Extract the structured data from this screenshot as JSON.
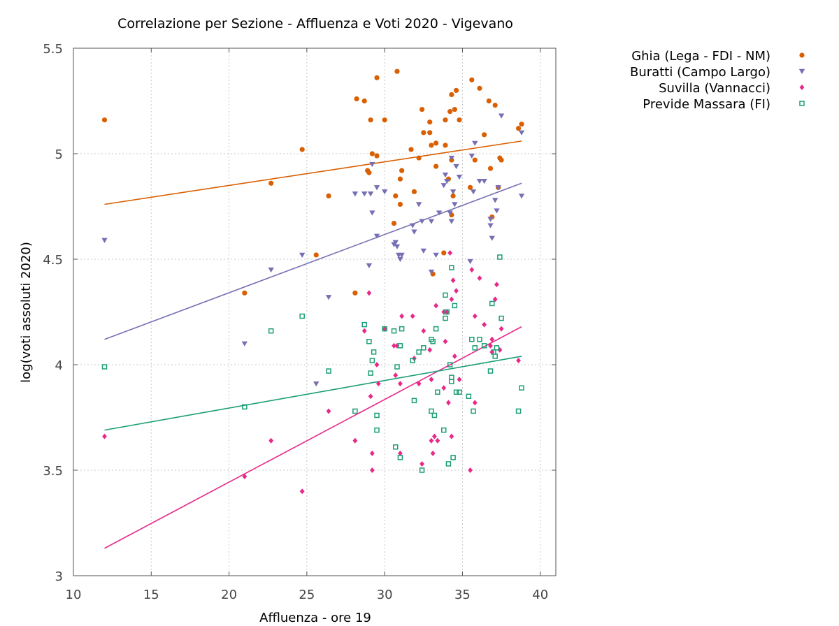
{
  "chart_data": {
    "type": "scatter",
    "title": "Correlazione per Sezione - Affluenza e Voti 2020 - Vigevano",
    "xlabel": "Affluenza - ore 19",
    "ylabel": "log(voti assoluti 2020)",
    "xlim": [
      10,
      41
    ],
    "ylim": [
      3,
      5.5
    ],
    "xticks": [
      10,
      15,
      20,
      25,
      30,
      35,
      40
    ],
    "yticks": [
      3,
      3.5,
      4,
      4.5,
      5,
      5.5
    ],
    "xtick_labels": [
      "10",
      "15",
      "20",
      "25",
      "30",
      "35",
      "40"
    ],
    "ytick_labels": [
      "3",
      "3.5",
      "4",
      "4.5",
      "5",
      "5.5"
    ],
    "grid": true,
    "legend_position": "outside-top-right",
    "series": [
      {
        "name": "Ghia (Lega - FDI - NM)",
        "color": "#d95f02",
        "marker": "circle",
        "trend": [
          [
            12,
            4.76
          ],
          [
            38.8,
            5.06
          ]
        ],
        "points": [
          [
            12.0,
            5.16
          ],
          [
            21.0,
            4.34
          ],
          [
            22.7,
            4.86
          ],
          [
            24.7,
            5.02
          ],
          [
            25.6,
            4.52
          ],
          [
            26.4,
            4.8
          ],
          [
            28.1,
            4.34
          ],
          [
            28.2,
            5.26
          ],
          [
            28.7,
            5.25
          ],
          [
            28.9,
            4.92
          ],
          [
            29.1,
            5.16
          ],
          [
            29.2,
            5.0
          ],
          [
            29.5,
            5.36
          ],
          [
            29.5,
            4.99
          ],
          [
            29.0,
            4.91
          ],
          [
            30.0,
            5.16
          ],
          [
            30.6,
            4.67
          ],
          [
            30.8,
            5.39
          ],
          [
            30.7,
            4.8
          ],
          [
            31.0,
            4.88
          ],
          [
            31.1,
            4.92
          ],
          [
            31.0,
            4.76
          ],
          [
            31.7,
            5.02
          ],
          [
            31.9,
            4.82
          ],
          [
            32.2,
            4.98
          ],
          [
            32.4,
            5.21
          ],
          [
            32.5,
            5.1
          ],
          [
            32.9,
            5.15
          ],
          [
            32.9,
            5.1
          ],
          [
            33.0,
            5.04
          ],
          [
            33.3,
            5.05
          ],
          [
            33.3,
            4.94
          ],
          [
            33.1,
            4.43
          ],
          [
            33.8,
            4.53
          ],
          [
            33.9,
            5.16
          ],
          [
            33.9,
            5.04
          ],
          [
            34.1,
            4.88
          ],
          [
            34.2,
            5.2
          ],
          [
            34.3,
            5.28
          ],
          [
            34.3,
            4.97
          ],
          [
            34.5,
            5.21
          ],
          [
            34.6,
            5.3
          ],
          [
            34.3,
            4.71
          ],
          [
            34.4,
            4.8
          ],
          [
            34.8,
            5.16
          ],
          [
            35.5,
            4.84
          ],
          [
            35.6,
            5.35
          ],
          [
            35.8,
            4.97
          ],
          [
            36.1,
            5.31
          ],
          [
            36.4,
            5.09
          ],
          [
            36.7,
            5.25
          ],
          [
            36.8,
            4.93
          ],
          [
            36.9,
            4.7
          ],
          [
            37.1,
            5.23
          ],
          [
            37.3,
            4.84
          ],
          [
            37.4,
            4.98
          ],
          [
            37.5,
            4.97
          ],
          [
            38.6,
            5.12
          ],
          [
            38.8,
            5.14
          ]
        ]
      },
      {
        "name": "Buratti (Campo Largo)",
        "color": "#7570b3",
        "marker": "triangle-down",
        "trend": [
          [
            12,
            4.12
          ],
          [
            38.8,
            4.86
          ]
        ],
        "points": [
          [
            12.0,
            4.59
          ],
          [
            21.0,
            4.1
          ],
          [
            22.7,
            4.45
          ],
          [
            24.7,
            4.52
          ],
          [
            25.6,
            3.91
          ],
          [
            26.4,
            4.32
          ],
          [
            28.1,
            4.81
          ],
          [
            28.7,
            4.81
          ],
          [
            29.0,
            4.47
          ],
          [
            29.1,
            4.81
          ],
          [
            29.2,
            4.72
          ],
          [
            29.2,
            4.95
          ],
          [
            29.5,
            4.84
          ],
          [
            29.5,
            4.61
          ],
          [
            30.0,
            4.82
          ],
          [
            30.6,
            4.57
          ],
          [
            30.7,
            4.58
          ],
          [
            30.8,
            4.56
          ],
          [
            30.9,
            4.52
          ],
          [
            31.0,
            4.5
          ],
          [
            31.1,
            4.52
          ],
          [
            31.8,
            4.66
          ],
          [
            31.9,
            4.63
          ],
          [
            32.2,
            4.76
          ],
          [
            32.4,
            4.68
          ],
          [
            32.5,
            4.54
          ],
          [
            33.0,
            4.44
          ],
          [
            33.0,
            4.68
          ],
          [
            33.3,
            4.52
          ],
          [
            33.5,
            4.72
          ],
          [
            33.8,
            4.85
          ],
          [
            33.9,
            4.9
          ],
          [
            34.0,
            4.87
          ],
          [
            34.2,
            4.72
          ],
          [
            34.3,
            4.68
          ],
          [
            34.3,
            4.98
          ],
          [
            34.4,
            4.82
          ],
          [
            34.5,
            4.76
          ],
          [
            34.6,
            4.94
          ],
          [
            34.8,
            4.89
          ],
          [
            35.5,
            4.49
          ],
          [
            35.6,
            4.99
          ],
          [
            35.7,
            4.82
          ],
          [
            35.8,
            5.05
          ],
          [
            36.1,
            4.87
          ],
          [
            36.4,
            4.87
          ],
          [
            36.8,
            4.66
          ],
          [
            36.8,
            4.69
          ],
          [
            36.9,
            4.6
          ],
          [
            37.1,
            4.78
          ],
          [
            37.2,
            4.73
          ],
          [
            37.3,
            4.84
          ],
          [
            37.5,
            5.18
          ],
          [
            38.8,
            5.1
          ],
          [
            38.8,
            4.8
          ]
        ]
      },
      {
        "name": "Suvilla (Vannacci)",
        "color": "#e7298a",
        "marker": "diamond",
        "trend": [
          [
            12,
            3.13
          ],
          [
            38.8,
            4.18
          ]
        ],
        "points": [
          [
            12.0,
            3.66
          ],
          [
            21.0,
            3.47
          ],
          [
            22.7,
            3.64
          ],
          [
            24.7,
            3.4
          ],
          [
            26.4,
            3.78
          ],
          [
            28.1,
            3.64
          ],
          [
            28.7,
            4.16
          ],
          [
            29.0,
            4.34
          ],
          [
            29.1,
            3.85
          ],
          [
            29.2,
            3.58
          ],
          [
            29.2,
            3.5
          ],
          [
            29.5,
            4.0
          ],
          [
            29.6,
            3.91
          ],
          [
            30.0,
            4.17
          ],
          [
            30.6,
            4.09
          ],
          [
            30.7,
            3.95
          ],
          [
            30.8,
            4.09
          ],
          [
            31.0,
            3.91
          ],
          [
            31.0,
            3.58
          ],
          [
            31.1,
            4.23
          ],
          [
            31.8,
            4.23
          ],
          [
            31.9,
            4.03
          ],
          [
            32.2,
            3.91
          ],
          [
            32.4,
            3.53
          ],
          [
            32.5,
            4.16
          ],
          [
            32.9,
            4.07
          ],
          [
            33.0,
            3.64
          ],
          [
            33.0,
            3.93
          ],
          [
            33.1,
            3.58
          ],
          [
            33.2,
            3.66
          ],
          [
            33.3,
            4.28
          ],
          [
            33.4,
            3.64
          ],
          [
            33.8,
            3.89
          ],
          [
            33.8,
            4.25
          ],
          [
            33.9,
            4.11
          ],
          [
            34.0,
            4.25
          ],
          [
            34.1,
            3.82
          ],
          [
            34.2,
            4.53
          ],
          [
            34.3,
            3.66
          ],
          [
            34.3,
            4.31
          ],
          [
            34.4,
            4.4
          ],
          [
            34.5,
            4.04
          ],
          [
            34.6,
            4.35
          ],
          [
            34.8,
            3.93
          ],
          [
            35.5,
            3.5
          ],
          [
            35.6,
            4.45
          ],
          [
            35.8,
            3.82
          ],
          [
            35.8,
            4.23
          ],
          [
            36.1,
            4.41
          ],
          [
            36.4,
            4.19
          ],
          [
            36.8,
            4.09
          ],
          [
            36.9,
            4.12
          ],
          [
            36.9,
            4.06
          ],
          [
            37.1,
            4.31
          ],
          [
            37.2,
            4.38
          ],
          [
            37.4,
            4.07
          ],
          [
            37.5,
            4.17
          ],
          [
            38.6,
            4.02
          ]
        ]
      },
      {
        "name": "Previde Massara (FI)",
        "color": "#1b9e77",
        "marker": "square-open",
        "trend": [
          [
            12,
            3.69
          ],
          [
            38.8,
            4.04
          ]
        ],
        "points": [
          [
            12.0,
            3.99
          ],
          [
            21.0,
            3.8
          ],
          [
            22.7,
            4.16
          ],
          [
            24.7,
            4.23
          ],
          [
            26.4,
            3.97
          ],
          [
            28.1,
            3.78
          ],
          [
            28.7,
            4.19
          ],
          [
            29.0,
            4.11
          ],
          [
            29.1,
            3.96
          ],
          [
            29.2,
            4.02
          ],
          [
            29.3,
            4.06
          ],
          [
            29.5,
            3.76
          ],
          [
            29.5,
            3.69
          ],
          [
            30.0,
            4.17
          ],
          [
            30.6,
            4.16
          ],
          [
            30.7,
            3.61
          ],
          [
            30.8,
            3.99
          ],
          [
            31.0,
            4.09
          ],
          [
            31.0,
            3.56
          ],
          [
            31.1,
            4.17
          ],
          [
            31.8,
            4.02
          ],
          [
            31.9,
            3.83
          ],
          [
            32.2,
            4.06
          ],
          [
            32.4,
            3.5
          ],
          [
            32.5,
            4.08
          ],
          [
            33.0,
            4.12
          ],
          [
            33.0,
            3.78
          ],
          [
            33.1,
            4.11
          ],
          [
            33.2,
            3.76
          ],
          [
            33.3,
            4.17
          ],
          [
            33.4,
            3.87
          ],
          [
            33.8,
            3.69
          ],
          [
            33.9,
            4.33
          ],
          [
            33.9,
            4.22
          ],
          [
            34.0,
            4.25
          ],
          [
            34.1,
            3.53
          ],
          [
            34.2,
            4.0
          ],
          [
            34.3,
            4.46
          ],
          [
            34.3,
            3.94
          ],
          [
            34.3,
            3.92
          ],
          [
            34.4,
            3.56
          ],
          [
            34.5,
            4.28
          ],
          [
            34.6,
            3.87
          ],
          [
            34.8,
            3.87
          ],
          [
            35.4,
            3.85
          ],
          [
            35.6,
            4.12
          ],
          [
            35.7,
            3.78
          ],
          [
            35.8,
            4.08
          ],
          [
            36.1,
            4.12
          ],
          [
            36.4,
            4.09
          ],
          [
            36.8,
            3.97
          ],
          [
            36.9,
            4.29
          ],
          [
            37.0,
            4.06
          ],
          [
            37.1,
            4.04
          ],
          [
            37.2,
            4.08
          ],
          [
            37.4,
            4.51
          ],
          [
            37.5,
            4.22
          ],
          [
            38.6,
            3.78
          ],
          [
            38.8,
            3.89
          ]
        ]
      }
    ]
  }
}
